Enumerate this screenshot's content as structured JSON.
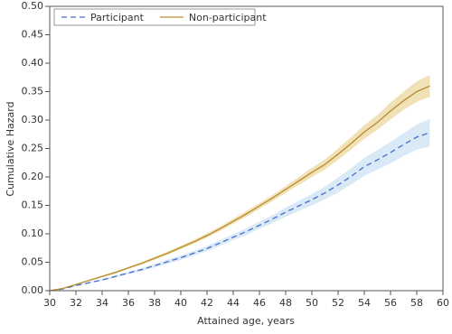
{
  "chart_data": {
    "type": "line",
    "xlabel": "Attained age, years",
    "ylabel": "Cumulative Hazard",
    "x": [
      30,
      31,
      32,
      33,
      34,
      35,
      36,
      37,
      38,
      39,
      40,
      41,
      42,
      43,
      44,
      45,
      46,
      47,
      48,
      49,
      50,
      51,
      52,
      53,
      54,
      55,
      56,
      57,
      58,
      59
    ],
    "series": [
      {
        "name": "Participant",
        "color": "#4a6bd1",
        "band_color": "#cfe3f2",
        "dashed": true,
        "values": [
          0,
          0.003,
          0.009,
          0.014,
          0.019,
          0.025,
          0.031,
          0.037,
          0.044,
          0.051,
          0.058,
          0.066,
          0.074,
          0.084,
          0.094,
          0.104,
          0.115,
          0.126,
          0.138,
          0.149,
          0.16,
          0.172,
          0.186,
          0.201,
          0.218,
          0.23,
          0.243,
          0.257,
          0.27,
          0.278
        ],
        "lower": [
          0,
          0.0025,
          0.008,
          0.013,
          0.0175,
          0.023,
          0.029,
          0.0345,
          0.041,
          0.0475,
          0.054,
          0.062,
          0.0695,
          0.079,
          0.089,
          0.098,
          0.109,
          0.119,
          0.13,
          0.14,
          0.15,
          0.161,
          0.173,
          0.187,
          0.202,
          0.213,
          0.224,
          0.237,
          0.248,
          0.254
        ],
        "upper": [
          0,
          0.0035,
          0.01,
          0.015,
          0.0205,
          0.027,
          0.033,
          0.0395,
          0.047,
          0.0545,
          0.062,
          0.07,
          0.0785,
          0.089,
          0.099,
          0.11,
          0.121,
          0.133,
          0.146,
          0.158,
          0.17,
          0.183,
          0.199,
          0.215,
          0.234,
          0.247,
          0.262,
          0.277,
          0.292,
          0.302
        ]
      },
      {
        "name": "Non-participant",
        "color": "#b98a2e",
        "band_color": "#eed9a4",
        "dashed": false,
        "values": [
          0,
          0.004,
          0.011,
          0.018,
          0.025,
          0.032,
          0.04,
          0.048,
          0.057,
          0.066,
          0.076,
          0.086,
          0.097,
          0.109,
          0.122,
          0.135,
          0.149,
          0.163,
          0.178,
          0.193,
          0.208,
          0.222,
          0.24,
          0.259,
          0.279,
          0.296,
          0.316,
          0.334,
          0.35,
          0.36
        ],
        "lower": [
          0,
          0.0035,
          0.01,
          0.017,
          0.0235,
          0.03,
          0.038,
          0.046,
          0.0545,
          0.063,
          0.073,
          0.0825,
          0.093,
          0.105,
          0.1175,
          0.13,
          0.144,
          0.1575,
          0.172,
          0.186,
          0.2,
          0.213,
          0.23,
          0.248,
          0.267,
          0.283,
          0.301,
          0.318,
          0.332,
          0.341
        ],
        "upper": [
          0,
          0.0045,
          0.012,
          0.019,
          0.0265,
          0.034,
          0.042,
          0.05,
          0.0595,
          0.069,
          0.079,
          0.0895,
          0.101,
          0.113,
          0.1265,
          0.14,
          0.154,
          0.1685,
          0.184,
          0.2,
          0.216,
          0.231,
          0.25,
          0.27,
          0.291,
          0.309,
          0.331,
          0.35,
          0.368,
          0.379
        ]
      }
    ],
    "xlim": [
      30,
      60
    ],
    "xticks": [
      30,
      32,
      34,
      36,
      38,
      40,
      42,
      44,
      46,
      48,
      50,
      52,
      54,
      56,
      58,
      60
    ],
    "ylim": [
      0,
      0.5
    ],
    "yticks": [
      {
        "value": 0,
        "label": "0.00"
      },
      {
        "value": 0.05,
        "label": "0.05"
      },
      {
        "value": 0.1,
        "label": "0.10"
      },
      {
        "value": 0.15,
        "label": "0.15"
      },
      {
        "value": 0.2,
        "label": "0.20"
      },
      {
        "value": 0.25,
        "label": "0.25"
      },
      {
        "value": 0.3,
        "label": "0.30"
      },
      {
        "value": 0.35,
        "label": "0.35"
      },
      {
        "value": 0.4,
        "label": "0.40"
      },
      {
        "value": 0.45,
        "label": "0.45"
      },
      {
        "value": 0.5,
        "label": "0.50"
      }
    ],
    "legend": "top-left"
  }
}
